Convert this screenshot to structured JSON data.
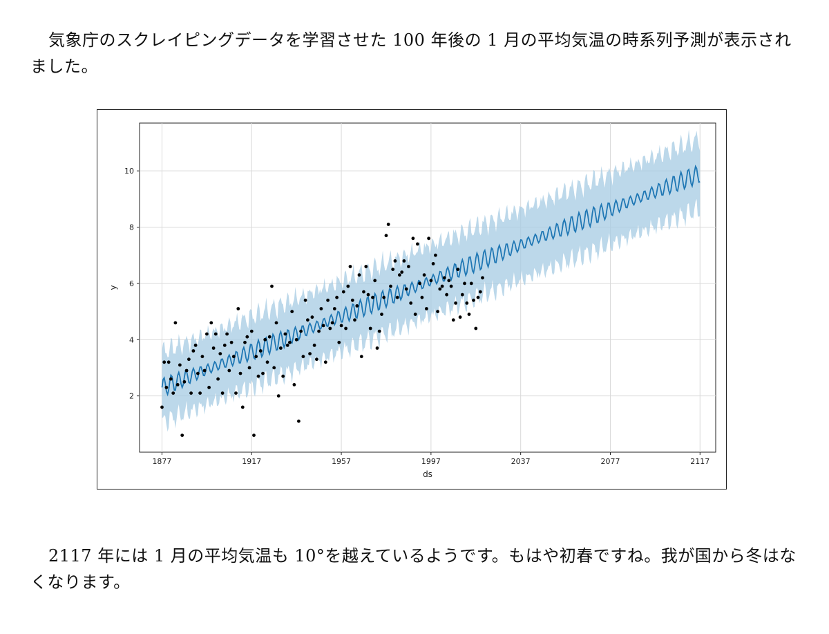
{
  "text": {
    "paragraph_top": "気象庁のスクレイピングデータを学習させた 100 年後の 1 月の平均気温の時系列予測が表示されました。",
    "paragraph_bottom": "2117 年には 1 月の平均気温も 10°を越えているようです。もはや初春ですね。我が国から冬はなくなります。"
  },
  "colors": {
    "forecast_line": "#1f77b4",
    "uncertainty_band": "#a6cbe3",
    "observed_points": "#000000",
    "grid": "#d9d9d9"
  },
  "chart_data": {
    "type": "line",
    "xlabel": "ds",
    "ylabel": "y",
    "xlim": [
      1867,
      2124
    ],
    "ylim": [
      0,
      11.7
    ],
    "x_ticks": [
      1877,
      1917,
      1957,
      1997,
      2037,
      2077,
      2117
    ],
    "y_ticks": [
      2,
      4,
      6,
      8,
      10
    ],
    "grid": true,
    "forecast": {
      "x_start": 1877,
      "x_end": 2117,
      "start": 2.3,
      "end": 9.9,
      "seasonal_amplitude": 0.25,
      "interval_half_width": 1.25
    },
    "observed": {
      "x": [
        1877,
        1878,
        1879,
        1880,
        1881,
        1882,
        1883,
        1884,
        1885,
        1886,
        1887,
        1888,
        1889,
        1890,
        1891,
        1892,
        1893,
        1894,
        1895,
        1896,
        1897,
        1898,
        1899,
        1900,
        1901,
        1902,
        1903,
        1904,
        1905,
        1906,
        1907,
        1908,
        1909,
        1910,
        1911,
        1912,
        1913,
        1914,
        1915,
        1916,
        1917,
        1918,
        1919,
        1920,
        1921,
        1922,
        1923,
        1924,
        1925,
        1926,
        1927,
        1928,
        1929,
        1930,
        1931,
        1932,
        1933,
        1934,
        1935,
        1936,
        1937,
        1938,
        1939,
        1940,
        1941,
        1942,
        1943,
        1944,
        1945,
        1946,
        1947,
        1948,
        1949,
        1950,
        1951,
        1952,
        1953,
        1954,
        1955,
        1956,
        1957,
        1958,
        1959,
        1960,
        1961,
        1962,
        1963,
        1964,
        1965,
        1966,
        1967,
        1968,
        1969,
        1970,
        1971,
        1972,
        1973,
        1974,
        1975,
        1976,
        1977,
        1978,
        1979,
        1980,
        1981,
        1982,
        1983,
        1984,
        1985,
        1986,
        1987,
        1988,
        1989,
        1990,
        1991,
        1992,
        1993,
        1994,
        1995,
        1996,
        1997,
        1998,
        1999,
        2000,
        2001,
        2002,
        2003,
        2004,
        2005,
        2006,
        2007,
        2008,
        2009,
        2010,
        2011,
        2012,
        2013,
        2014,
        2015,
        2016,
        2017,
        2018,
        2019,
        2020
      ],
      "y": [
        1.6,
        3.2,
        2.3,
        3.2,
        2.6,
        2.1,
        4.6,
        2.4,
        3.1,
        0.6,
        2.5,
        2.9,
        3.3,
        2.1,
        3.6,
        3.8,
        2.8,
        2.1,
        3.4,
        2.9,
        4.2,
        2.3,
        4.6,
        3.7,
        4.2,
        2.6,
        3.5,
        2.1,
        3.8,
        4.2,
        2.9,
        3.9,
        3.4,
        2.1,
        5.1,
        2.8,
        1.6,
        3.9,
        4.1,
        3.0,
        4.3,
        0.6,
        3.4,
        2.7,
        3.6,
        2.8,
        4.0,
        3.2,
        4.1,
        5.9,
        3.0,
        4.6,
        2.0,
        3.7,
        2.7,
        4.2,
        3.8,
        3.9,
        5.0,
        2.4,
        4.0,
        1.1,
        4.3,
        3.4,
        5.4,
        4.7,
        3.5,
        4.8,
        3.8,
        3.3,
        4.3,
        5.1,
        4.5,
        3.2,
        5.4,
        4.4,
        4.6,
        5.1,
        5.5,
        3.9,
        4.5,
        5.7,
        4.4,
        5.9,
        6.6,
        5.4,
        4.7,
        5.2,
        6.3,
        3.4,
        5.7,
        6.6,
        5.6,
        4.4,
        5.5,
        6.1,
        3.7,
        4.3,
        4.9,
        5.5,
        7.7,
        8.1,
        5.9,
        6.5,
        6.8,
        5.5,
        6.3,
        6.4,
        6.8,
        5.8,
        6.6,
        5.3,
        7.6,
        4.9,
        7.4,
        6.0,
        5.5,
        6.3,
        5.1,
        7.6,
        6.1,
        6.7,
        7.0,
        5.0,
        5.8,
        5.9,
        6.2,
        5.6,
        6.1,
        5.9,
        4.7,
        5.3,
        6.5,
        4.8,
        5.6,
        6.0,
        5.3,
        4.9,
        6.0,
        5.4,
        4.4,
        5.5,
        5.7,
        6.2
      ]
    }
  }
}
